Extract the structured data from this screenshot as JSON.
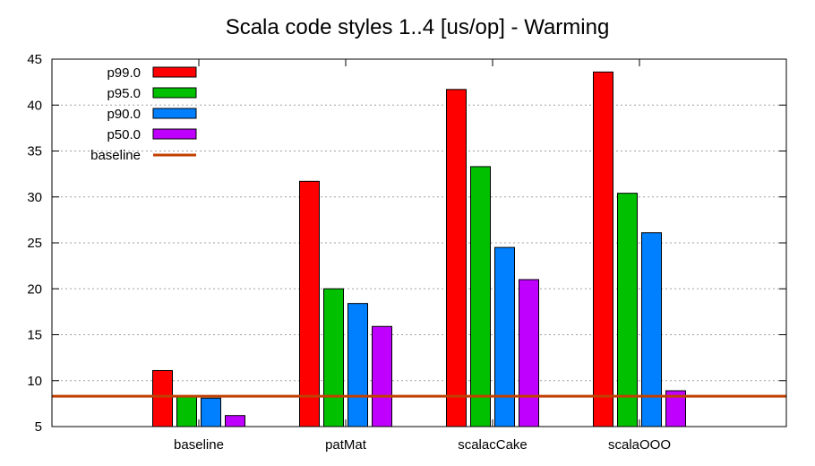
{
  "chart_data": {
    "type": "bar",
    "title": "Scala code styles 1..4 [us/op] - Warming",
    "xlabel": "",
    "ylabel": "",
    "categories": [
      "baseline",
      "patMat",
      "scalacCake",
      "scalaOOO"
    ],
    "ylim": [
      5,
      45
    ],
    "yticks": [
      5,
      10,
      15,
      20,
      25,
      30,
      35,
      40,
      45
    ],
    "grid": true,
    "legend_position": "top-left",
    "series": [
      {
        "name": "p99.0",
        "color": "#ff0000",
        "values": [
          11.1,
          31.7,
          41.7,
          43.6
        ]
      },
      {
        "name": "p95.0",
        "color": "#00c000",
        "values": [
          8.3,
          20.0,
          33.3,
          30.4
        ]
      },
      {
        "name": "p90.0",
        "color": "#0080ff",
        "values": [
          8.1,
          18.4,
          24.5,
          26.1
        ]
      },
      {
        "name": "p50.0",
        "color": "#c000ff",
        "values": [
          6.2,
          15.9,
          21.0,
          8.9
        ]
      }
    ],
    "reference_lines": [
      {
        "name": "baseline",
        "color": "#c04000",
        "value": 8.3
      }
    ]
  }
}
